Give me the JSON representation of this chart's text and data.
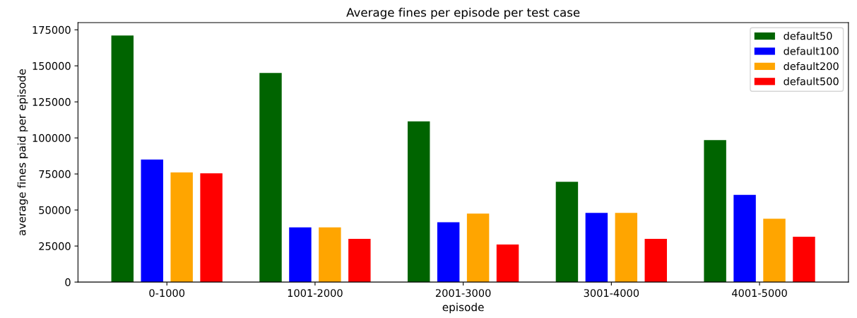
{
  "chart_data": {
    "type": "bar",
    "title": "Average fines per episode per test case",
    "xlabel": "episode",
    "ylabel": "average fines paid per episode",
    "categories": [
      "0-1000",
      "1001-2000",
      "2001-3000",
      "3001-4000",
      "4001-5000"
    ],
    "series": [
      {
        "name": "default50",
        "color": "#006400",
        "values": [
          171000,
          145000,
          111500,
          69500,
          98500
        ]
      },
      {
        "name": "default100",
        "color": "#0000ff",
        "values": [
          85000,
          38000,
          41500,
          48000,
          60500
        ]
      },
      {
        "name": "default200",
        "color": "#ffa500",
        "values": [
          76000,
          38000,
          47500,
          48000,
          44000
        ]
      },
      {
        "name": "default500",
        "color": "#ff0000",
        "values": [
          75500,
          30000,
          26000,
          30000,
          31500
        ]
      }
    ],
    "ylim": [
      0,
      180000
    ],
    "yticks": [
      0,
      25000,
      50000,
      75000,
      100000,
      125000,
      150000,
      175000
    ],
    "grid": false,
    "legend": "top right"
  }
}
